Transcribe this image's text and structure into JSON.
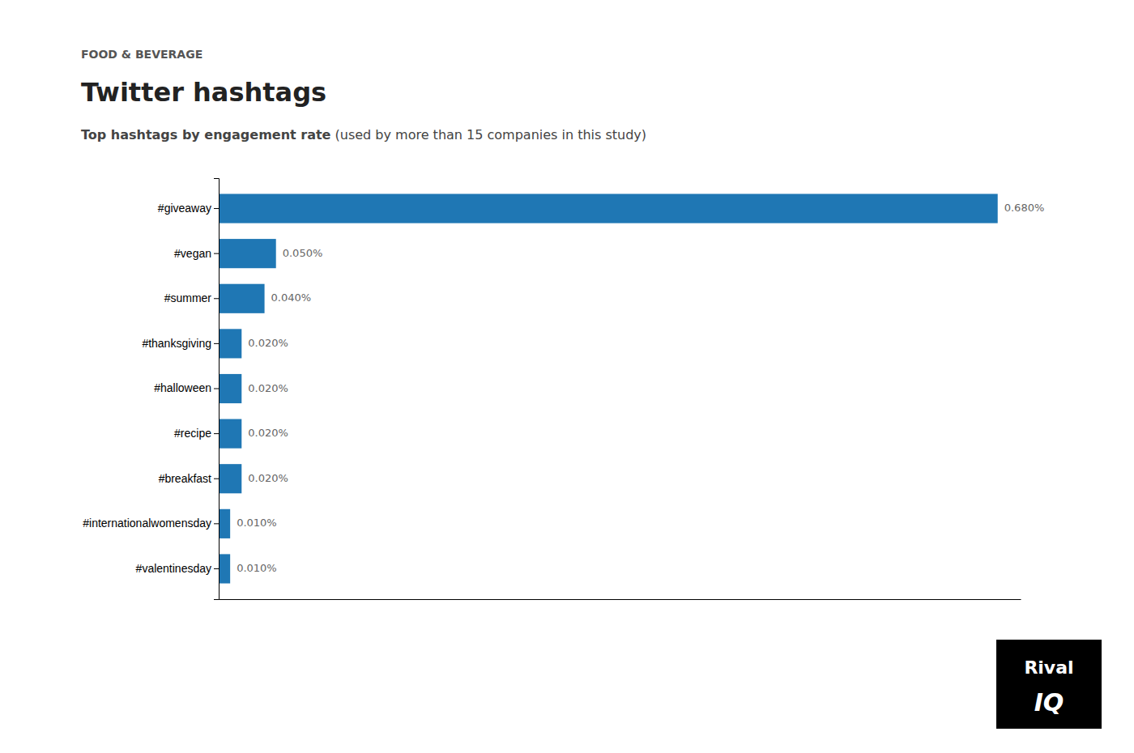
{
  "chart_data": {
    "type": "bar",
    "orientation": "horizontal",
    "title": "Twitter hashtags",
    "subtitle": [
      "Top hashtags by engagement rate",
      " (used by more than 15 companies in this study)"
    ],
    "annotations": [
      "FOOD & BEVERAGE",
      "Rival",
      "IQ"
    ],
    "categories": [
      "#giveaway",
      "#vegan",
      "#summer",
      "#thanksgiving",
      "#halloween",
      "#recipe",
      "#breakfast",
      "#internationalwomensday",
      "#valentinesday"
    ],
    "values": [
      0.68,
      0.05,
      0.04,
      0.02,
      0.02,
      0.02,
      0.02,
      0.01,
      0.01
    ],
    "value_labels": [
      "0.680%",
      "0.050%",
      "0.040%",
      "0.020%",
      "0.020%",
      "0.020%",
      "0.020%",
      "0.010%",
      "0.010%"
    ],
    "data_labels": true,
    "xlim": [
      0,
      0.7
    ],
    "tick_labels": "y",
    "grid": false
  }
}
